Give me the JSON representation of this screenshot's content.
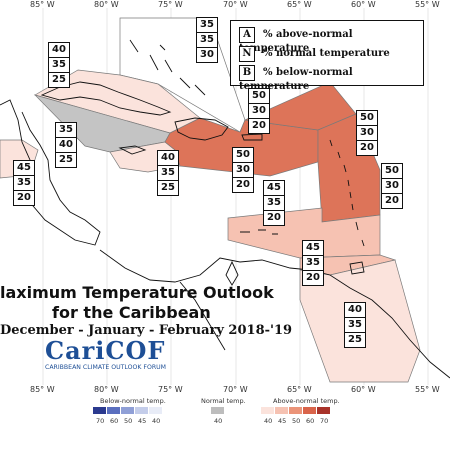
{
  "longitudes": [
    "85° W",
    "80° W",
    "75° W",
    "70° W",
    "65° W",
    "60° W",
    "55° W"
  ],
  "legend": {
    "rows": [
      {
        "letter": "A",
        "text": "% above-normal temperature"
      },
      {
        "letter": "N",
        "text": "% normal temperature"
      },
      {
        "letter": "B",
        "text": "% below-normal temperature"
      }
    ]
  },
  "probabilities": [
    {
      "region": "bahamas",
      "values": [
        "35",
        "35",
        "30"
      ]
    },
    {
      "region": "cuba",
      "values": [
        "40",
        "35",
        "25"
      ]
    },
    {
      "region": "cayman",
      "values": [
        "35",
        "40",
        "25"
      ]
    },
    {
      "region": "central-america",
      "values": [
        "45",
        "35",
        "20"
      ]
    },
    {
      "region": "jamaica",
      "values": [
        "40",
        "35",
        "25"
      ]
    },
    {
      "region": "hispaniola",
      "values": [
        "50",
        "30",
        "20"
      ]
    },
    {
      "region": "turks-caicos",
      "values": [
        "50",
        "30",
        "20"
      ]
    },
    {
      "region": "leeward-islands",
      "values": [
        "50",
        "30",
        "20"
      ]
    },
    {
      "region": "windward-islands",
      "values": [
        "50",
        "30",
        "20"
      ]
    },
    {
      "region": "abc-islands",
      "values": [
        "45",
        "35",
        "20"
      ]
    },
    {
      "region": "trinidad",
      "values": [
        "45",
        "35",
        "20"
      ]
    },
    {
      "region": "guianas",
      "values": [
        "40",
        "35",
        "25"
      ]
    }
  ],
  "title": {
    "line1": "laximum Temperature Outlook",
    "line2": "for the Caribbean",
    "period": "December - January - February 2018-'19"
  },
  "logo": {
    "name": "CariCOF",
    "tagline": "CARIBBEAN CLIMATE OUTLOOK FORUM"
  },
  "colorbar": {
    "below_label": "Below-normal temp.",
    "normal_label": "Normal temp.",
    "above_label": "Above-normal temp.",
    "below_ticks": [
      "70",
      "60",
      "50",
      "45",
      "40"
    ],
    "normal_ticks": [
      "40"
    ],
    "above_ticks": [
      "40",
      "45",
      "50",
      "60",
      "70"
    ],
    "below_colors": [
      "#2b3a8f",
      "#5a6fbf",
      "#8f9fd6",
      "#c4cdea",
      "#e8ecf7"
    ],
    "normal_color": "#bdbdbd",
    "above_colors": [
      "#fbe3dc",
      "#f6c2b2",
      "#eb9479",
      "#d9644a",
      "#a8332a"
    ]
  },
  "colors": {
    "c40": "#fbe3dc",
    "c45": "#f6c2b2",
    "c50": "#dd7459",
    "normal": "#c4c4c4"
  }
}
